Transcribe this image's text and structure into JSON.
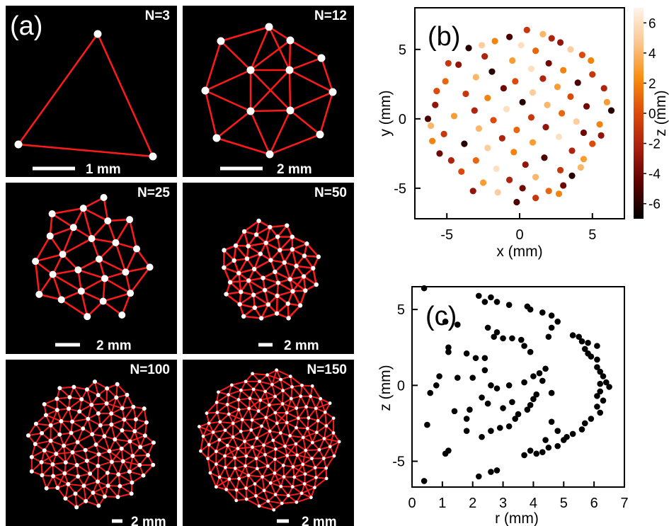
{
  "figure": {
    "panel_a": {
      "label": "(a)",
      "subpanels": [
        {
          "n_label": "N=3",
          "n": 3,
          "scale_label": "1 mm"
        },
        {
          "n_label": "N=12",
          "n": 12,
          "scale_label": "2 mm"
        },
        {
          "n_label": "N=25",
          "n": 25,
          "scale_label": "2 mm"
        },
        {
          "n_label": "N=50",
          "n": 50,
          "scale_label": "2 mm"
        },
        {
          "n_label": "N=100",
          "n": 100,
          "scale_label": "2 mm"
        },
        {
          "n_label": "N=150",
          "n": 150,
          "scale_label": "2 mm"
        }
      ]
    },
    "panel_b": {
      "label": "(b)"
    },
    "panel_c": {
      "label": "(c)"
    }
  },
  "chart_data": [
    {
      "type": "scatter",
      "panel": "b",
      "title": "",
      "xlabel": "x (mm)",
      "ylabel": "y (mm)",
      "colorbar_label": "z (mm)",
      "xlim": [
        -7.2,
        7.2
      ],
      "ylim": [
        -7.2,
        8
      ],
      "xticks": [
        -5,
        0,
        5
      ],
      "yticks": [
        -5,
        0,
        5
      ],
      "colorbar_ticks": [
        6,
        4,
        2,
        0,
        -2,
        -4,
        -6
      ],
      "colorbar_range": [
        -7,
        7
      ],
      "colorbar_colors": [
        "#000000",
        "#5a0000",
        "#a81e0e",
        "#dc4a0a",
        "#f88d0e",
        "#fbc690",
        "#fff4ea"
      ],
      "grid": false,
      "points": [
        [
          0.5,
          6.4,
          -1
        ],
        [
          1.6,
          6.1,
          4
        ],
        [
          -0.7,
          5.9,
          -5
        ],
        [
          -1.7,
          5.6,
          2
        ],
        [
          2.8,
          5.5,
          -3
        ],
        [
          0.1,
          5.3,
          6
        ],
        [
          -3.5,
          5.1,
          -6
        ],
        [
          1.1,
          4.9,
          1
        ],
        [
          3.5,
          5.0,
          5
        ],
        [
          -2.4,
          4.5,
          -2
        ],
        [
          4.3,
          4.6,
          0
        ],
        [
          -0.5,
          4.2,
          3
        ],
        [
          2.0,
          4.0,
          -4
        ],
        [
          -4.2,
          3.9,
          -3
        ],
        [
          0.8,
          3.6,
          6
        ],
        [
          -1.9,
          3.4,
          -6
        ],
        [
          3.0,
          3.5,
          2
        ],
        [
          5.0,
          3.2,
          -1
        ],
        [
          -3.0,
          3.0,
          4
        ],
        [
          1.6,
          2.9,
          -2
        ],
        [
          -0.3,
          2.7,
          0
        ],
        [
          4.0,
          2.6,
          -5
        ],
        [
          -5.1,
          2.7,
          1
        ],
        [
          2.6,
          2.3,
          3
        ],
        [
          -1.1,
          2.2,
          -4
        ],
        [
          0.9,
          1.9,
          5
        ],
        [
          5.8,
          2.2,
          -2
        ],
        [
          -3.7,
          1.8,
          -1
        ],
        [
          3.5,
          1.6,
          0
        ],
        [
          -2.2,
          1.5,
          2
        ],
        [
          0.2,
          1.2,
          -6
        ],
        [
          1.9,
          1.0,
          4
        ],
        [
          -5.8,
          1.0,
          -3
        ],
        [
          4.6,
          0.9,
          -4
        ],
        [
          -0.9,
          0.7,
          6
        ],
        [
          -3.1,
          0.6,
          -2
        ],
        [
          2.9,
          0.4,
          1
        ],
        [
          6.3,
          0.6,
          -6
        ],
        [
          -4.5,
          0.2,
          3
        ],
        [
          0.8,
          0.1,
          -1
        ],
        [
          -1.8,
          -0.1,
          0
        ],
        [
          3.9,
          -0.2,
          5
        ],
        [
          -6.3,
          0.0,
          -5
        ],
        [
          5.5,
          -0.4,
          2
        ],
        [
          1.8,
          -0.6,
          -3
        ],
        [
          -2.8,
          -0.7,
          4
        ],
        [
          -0.2,
          -0.8,
          1
        ],
        [
          4.4,
          -1.0,
          -4
        ],
        [
          -5.2,
          -1.1,
          -1
        ],
        [
          2.7,
          -1.3,
          6
        ],
        [
          -1.2,
          -1.4,
          -2
        ],
        [
          0.9,
          -1.7,
          3
        ],
        [
          -3.8,
          -1.8,
          -6
        ],
        [
          5.0,
          -1.8,
          0
        ],
        [
          -2.2,
          -2.1,
          5
        ],
        [
          3.6,
          -2.3,
          -2
        ],
        [
          -0.4,
          -2.4,
          2
        ],
        [
          -5.5,
          -2.5,
          -4
        ],
        [
          1.7,
          -2.8,
          -5
        ],
        [
          -3.0,
          -3.0,
          1
        ],
        [
          4.4,
          -2.9,
          3
        ],
        [
          0.4,
          -3.3,
          -3
        ],
        [
          -1.6,
          -3.6,
          6
        ],
        [
          2.8,
          -3.7,
          -1
        ],
        [
          -4.0,
          -3.8,
          0
        ],
        [
          1.1,
          -4.2,
          4
        ],
        [
          -0.7,
          -4.4,
          -2
        ],
        [
          3.6,
          -4.1,
          -6
        ],
        [
          -2.5,
          -4.6,
          3
        ],
        [
          0.2,
          -5.0,
          -4
        ],
        [
          2.0,
          -5.2,
          1
        ],
        [
          -1.5,
          -5.3,
          5
        ],
        [
          1.1,
          -5.7,
          -1
        ],
        [
          -0.2,
          -6.0,
          -5
        ],
        [
          2.7,
          -5.4,
          2
        ],
        [
          -3.2,
          -5.2,
          -3
        ],
        [
          4.2,
          -3.5,
          4
        ],
        [
          -4.7,
          -3.0,
          -2
        ],
        [
          5.6,
          -1.2,
          -3
        ],
        [
          -6.0,
          -1.6,
          2
        ],
        [
          6.0,
          1.2,
          3
        ],
        [
          -5.7,
          2.0,
          0
        ],
        [
          -2.6,
          5.3,
          5
        ],
        [
          2.2,
          5.8,
          -2
        ],
        [
          -4.9,
          4.0,
          -1
        ],
        [
          4.9,
          4.2,
          2
        ],
        [
          -6.1,
          -0.5,
          4
        ],
        [
          3.0,
          -4.8,
          -4
        ]
      ]
    },
    {
      "type": "scatter",
      "panel": "c",
      "title": "",
      "xlabel": "r (mm)",
      "ylabel": "z (mm)",
      "xlim": [
        0,
        7
      ],
      "ylim": [
        -6.7,
        6.5
      ],
      "xticks": [
        0,
        1,
        2,
        3,
        4,
        5,
        6,
        7
      ],
      "yticks": [
        -5,
        0,
        5
      ],
      "grid": false,
      "points": [
        [
          0.4,
          6.4
        ],
        [
          2.2,
          5.9
        ],
        [
          2.6,
          5.8
        ],
        [
          2.4,
          5.5
        ],
        [
          2.8,
          5.5
        ],
        [
          3.2,
          5.3
        ],
        [
          3.8,
          5.2
        ],
        [
          3.9,
          5.0
        ],
        [
          1.1,
          4.2
        ],
        [
          1.5,
          4.0
        ],
        [
          4.3,
          4.8
        ],
        [
          4.6,
          4.6
        ],
        [
          4.8,
          4.2
        ],
        [
          4.6,
          3.8
        ],
        [
          4.5,
          3.2
        ],
        [
          2.5,
          3.8
        ],
        [
          2.8,
          3.5
        ],
        [
          2.7,
          3.2
        ],
        [
          3.0,
          3.1
        ],
        [
          3.3,
          3.1
        ],
        [
          3.6,
          3.0
        ],
        [
          3.7,
          2.6
        ],
        [
          3.9,
          2.2
        ],
        [
          1.2,
          2.5
        ],
        [
          1.2,
          2.2
        ],
        [
          1.8,
          2.1
        ],
        [
          2.1,
          1.8
        ],
        [
          2.4,
          1.8
        ],
        [
          5.3,
          3.3
        ],
        [
          5.5,
          3.2
        ],
        [
          5.6,
          2.9
        ],
        [
          5.8,
          2.8
        ],
        [
          6.1,
          2.6
        ],
        [
          5.7,
          2.4
        ],
        [
          5.8,
          2.1
        ],
        [
          5.9,
          1.9
        ],
        [
          6.1,
          1.7
        ],
        [
          6.1,
          1.2
        ],
        [
          6.2,
          0.9
        ],
        [
          6.3,
          0.6
        ],
        [
          6.2,
          0.1
        ],
        [
          6.4,
          0.2
        ],
        [
          6.5,
          -0.1
        ],
        [
          6.2,
          -0.4
        ],
        [
          6.1,
          -0.7
        ],
        [
          6.3,
          -1.0
        ],
        [
          6.1,
          -1.4
        ],
        [
          6.2,
          -1.8
        ],
        [
          5.9,
          -2.2
        ],
        [
          5.7,
          -2.5
        ],
        [
          5.6,
          -2.9
        ],
        [
          5.3,
          -3.2
        ],
        [
          5.0,
          -3.6
        ],
        [
          4.8,
          -4.0
        ],
        [
          4.5,
          -4.1
        ],
        [
          4.3,
          -4.4
        ],
        [
          4.1,
          -4.5
        ],
        [
          3.9,
          -4.3
        ],
        [
          3.7,
          -4.6
        ],
        [
          0.9,
          0.6
        ],
        [
          0.6,
          -0.5
        ],
        [
          0.5,
          -2.6
        ],
        [
          1.1,
          -4.5
        ],
        [
          1.2,
          -4.3
        ],
        [
          0.4,
          -6.3
        ],
        [
          2.2,
          -6.0
        ],
        [
          2.6,
          -5.7
        ],
        [
          2.8,
          -5.6
        ],
        [
          1.8,
          -3.0
        ],
        [
          2.3,
          -3.4
        ],
        [
          2.6,
          -3.0
        ],
        [
          2.9,
          -2.8
        ],
        [
          3.2,
          -2.7
        ],
        [
          3.4,
          -2.2
        ],
        [
          3.5,
          -1.9
        ],
        [
          3.8,
          -1.6
        ],
        [
          3.9,
          -1.3
        ],
        [
          4.0,
          -0.9
        ],
        [
          4.1,
          -0.6
        ],
        [
          4.3,
          0.3
        ],
        [
          4.0,
          0.6
        ],
        [
          4.2,
          0.8
        ],
        [
          4.4,
          1.1
        ],
        [
          4.6,
          -0.5
        ],
        [
          3.7,
          0.2
        ],
        [
          2.4,
          1.0
        ],
        [
          2.6,
          0.0
        ],
        [
          2.8,
          -0.2
        ],
        [
          3.2,
          0.0
        ],
        [
          1.9,
          -1.6
        ],
        [
          1.8,
          -2.2
        ],
        [
          1.4,
          -1.7
        ],
        [
          0.8,
          0.0
        ],
        [
          2.0,
          0.5
        ],
        [
          1.5,
          0.5
        ],
        [
          2.3,
          -0.8
        ],
        [
          2.5,
          -1.2
        ],
        [
          3.0,
          -1.5
        ],
        [
          3.3,
          -1.1
        ],
        [
          4.6,
          -2.4
        ],
        [
          4.8,
          -3.0
        ],
        [
          5.1,
          -3.4
        ],
        [
          4.4,
          -3.6
        ]
      ]
    }
  ]
}
